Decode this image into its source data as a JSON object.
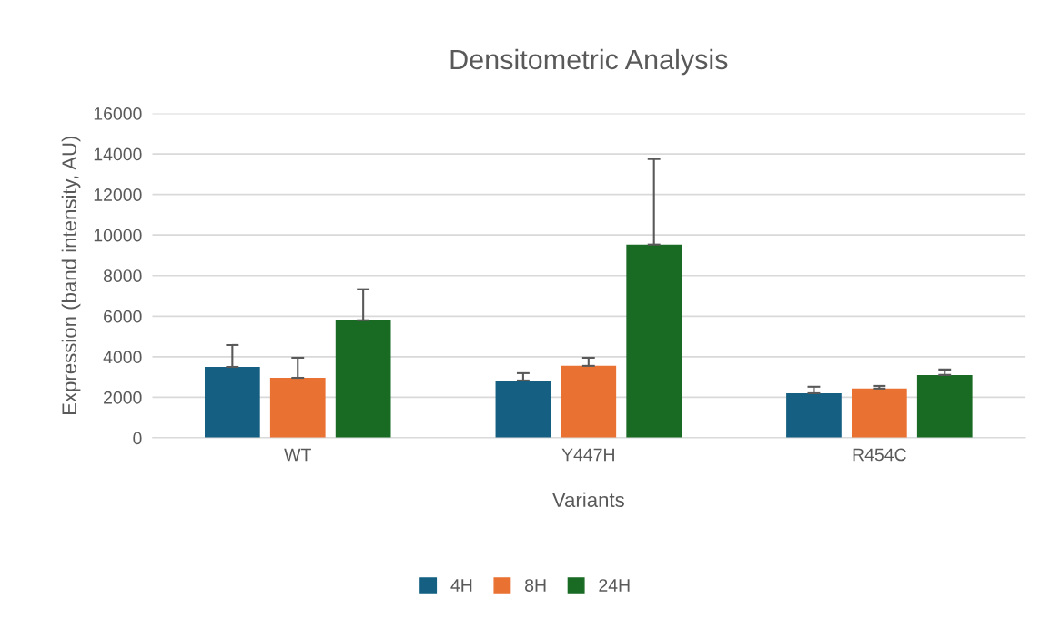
{
  "chart_data": {
    "type": "bar",
    "title": "Densitometric Analysis",
    "xlabel": "Variants",
    "ylabel": "Expression (band intensity, AU)",
    "categories": [
      "WT",
      "Y447H",
      "R454C"
    ],
    "series": [
      {
        "name": "4H",
        "color": "#156082",
        "values": [
          3500,
          2830,
          2200
        ],
        "errors": [
          [
            3500,
            4580
          ],
          [
            2830,
            3190
          ],
          [
            2200,
            2520
          ]
        ]
      },
      {
        "name": "8H",
        "color": "#e97132",
        "values": [
          2960,
          3550,
          2430
        ],
        "errors": [
          [
            2960,
            3950
          ],
          [
            3550,
            3950
          ],
          [
            2430,
            2560
          ]
        ]
      },
      {
        "name": "24H",
        "color": "#196b24",
        "values": [
          5800,
          9530,
          3100
        ],
        "errors": [
          [
            5800,
            7330
          ],
          [
            9530,
            13750
          ],
          [
            3100,
            3370
          ]
        ]
      }
    ],
    "ylim": [
      0,
      16000
    ],
    "yticks": [
      0,
      2000,
      4000,
      6000,
      8000,
      10000,
      12000,
      14000,
      16000
    ],
    "grid": "y",
    "legend": "bottom"
  }
}
